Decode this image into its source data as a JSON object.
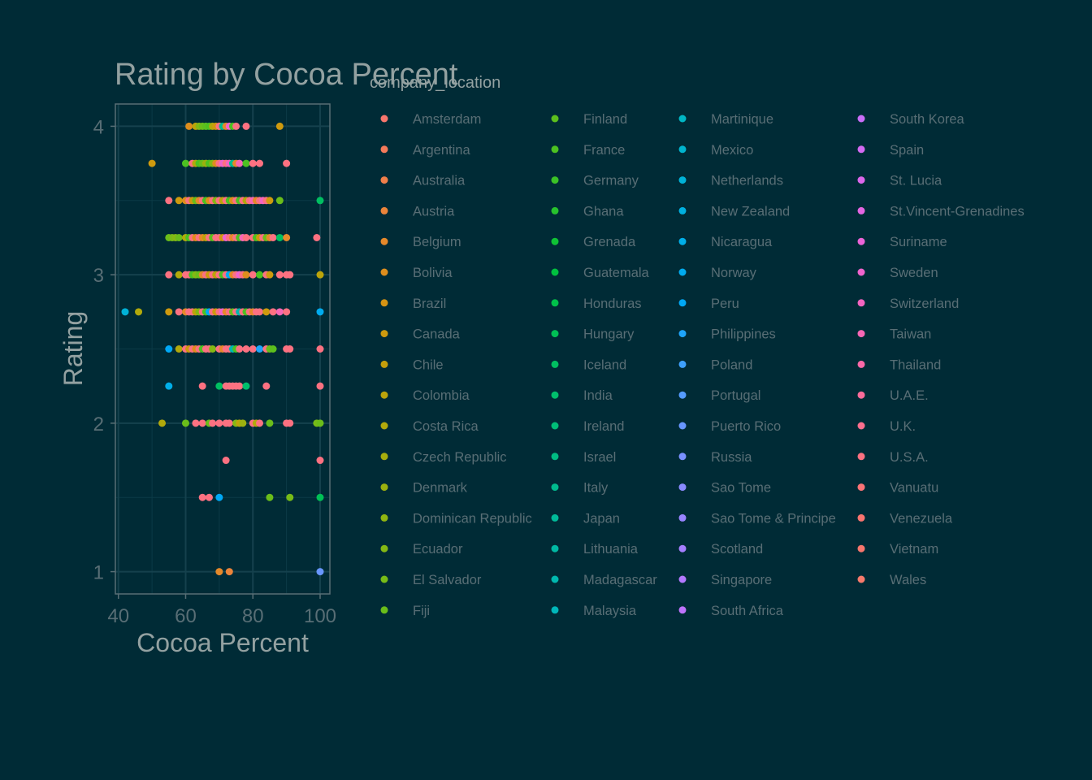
{
  "chart_data": {
    "type": "scatter",
    "title": "Rating by Cocoa Percent",
    "xlabel": "Cocoa Percent",
    "ylabel": "Rating",
    "xlim": [
      39.1,
      102.9
    ],
    "ylim": [
      0.85,
      4.15
    ],
    "xticks": [
      40,
      60,
      80,
      100
    ],
    "yticks": [
      1,
      2,
      3,
      4
    ],
    "grid": true,
    "legend": {
      "title": "company_location",
      "placement": "right",
      "entries": [
        {
          "name": "Amsterdam",
          "color": "#F8766D"
        },
        {
          "name": "Argentina",
          "color": "#F47A5A"
        },
        {
          "name": "Australia",
          "color": "#F07F4A"
        },
        {
          "name": "Austria",
          "color": "#EB843A"
        },
        {
          "name": "Belgium",
          "color": "#E5892A"
        },
        {
          "name": "Bolivia",
          "color": "#DE8E1D"
        },
        {
          "name": "Brazil",
          "color": "#D69413"
        },
        {
          "name": "Canada",
          "color": "#CE9A0E"
        },
        {
          "name": "Chile",
          "color": "#C59F0B"
        },
        {
          "name": "Colombia",
          "color": "#BCA40A"
        },
        {
          "name": "Costa Rica",
          "color": "#B2A90B"
        },
        {
          "name": "Czech Republic",
          "color": "#A7AD0D"
        },
        {
          "name": "Denmark",
          "color": "#9CB10F"
        },
        {
          "name": "Dominican Republic",
          "color": "#90B511"
        },
        {
          "name": "Ecuador",
          "color": "#84B814"
        },
        {
          "name": "El Salvador",
          "color": "#77BB17"
        },
        {
          "name": "Fiji",
          "color": "#6ABD1A"
        },
        {
          "name": "Finland",
          "color": "#5CBF1D"
        },
        {
          "name": "France",
          "color": "#4CC121"
        },
        {
          "name": "Germany",
          "color": "#3BC226"
        },
        {
          "name": "Ghana",
          "color": "#27C22D"
        },
        {
          "name": "Grenada",
          "color": "#0FC235"
        },
        {
          "name": "Guatemala",
          "color": "#00C13F"
        },
        {
          "name": "Honduras",
          "color": "#00C14A"
        },
        {
          "name": "Hungary",
          "color": "#00C055"
        },
        {
          "name": "Iceland",
          "color": "#00BF61"
        },
        {
          "name": "India",
          "color": "#00BE6C"
        },
        {
          "name": "Ireland",
          "color": "#00BD78"
        },
        {
          "name": "Israel",
          "color": "#00BC83"
        },
        {
          "name": "Italy",
          "color": "#00BB8E"
        },
        {
          "name": "Japan",
          "color": "#00BA99"
        },
        {
          "name": "Lithuania",
          "color": "#00B9A4"
        },
        {
          "name": "Madagascar",
          "color": "#00B8AF"
        },
        {
          "name": "Malaysia",
          "color": "#00B7BA"
        },
        {
          "name": "Martinique",
          "color": "#00B6C4"
        },
        {
          "name": "Mexico",
          "color": "#00B4CE"
        },
        {
          "name": "Netherlands",
          "color": "#00B2D7"
        },
        {
          "name": "New Zealand",
          "color": "#00B0E0"
        },
        {
          "name": "Nicaragua",
          "color": "#00AEE8"
        },
        {
          "name": "Norway",
          "color": "#00ABEF"
        },
        {
          "name": "Peru",
          "color": "#00A8F5"
        },
        {
          "name": "Philippines",
          "color": "#1EA4F9"
        },
        {
          "name": "Poland",
          "color": "#3EA0FC"
        },
        {
          "name": "Portugal",
          "color": "#559BFE"
        },
        {
          "name": "Puerto Rico",
          "color": "#6896FF"
        },
        {
          "name": "Russia",
          "color": "#7990FF"
        },
        {
          "name": "Sao Tome",
          "color": "#898AFF"
        },
        {
          "name": "Sao Tome & Principe",
          "color": "#9884FF"
        },
        {
          "name": "Scotland",
          "color": "#A57EFF"
        },
        {
          "name": "Singapore",
          "color": "#B278FF"
        },
        {
          "name": "South Africa",
          "color": "#BE73FC"
        },
        {
          "name": "South Korea",
          "color": "#C96EF8"
        },
        {
          "name": "Spain",
          "color": "#D36AF2"
        },
        {
          "name": "St. Lucia",
          "color": "#DC67EB"
        },
        {
          "name": "St.Vincent-Grenadines",
          "color": "#E465E2"
        },
        {
          "name": "Suriname",
          "color": "#EB64D8"
        },
        {
          "name": "Sweden",
          "color": "#F064CD"
        },
        {
          "name": "Switzerland",
          "color": "#F465C1"
        },
        {
          "name": "Taiwan",
          "color": "#F767B5"
        },
        {
          "name": "Thailand",
          "color": "#FA69A8"
        },
        {
          "name": "U.A.E.",
          "color": "#FB6C9B"
        },
        {
          "name": "U.K.",
          "color": "#FC6F8E"
        },
        {
          "name": "U.S.A.",
          "color": "#FC7181"
        },
        {
          "name": "Vanuatu",
          "color": "#FB7376"
        },
        {
          "name": "Venezuela",
          "color": "#FA746F"
        },
        {
          "name": "Vietnam",
          "color": "#F8766D"
        },
        {
          "name": "Wales",
          "color": "#F77A6C"
        }
      ]
    },
    "points": [
      [
        70,
        4,
        "Bolivia"
      ],
      [
        61,
        4,
        "Bolivia"
      ],
      [
        63,
        4,
        "Colombia"
      ],
      [
        64,
        4,
        "Ecuador"
      ],
      [
        65,
        4,
        "Fiji"
      ],
      [
        66,
        4,
        "Finland"
      ],
      [
        67,
        4,
        "France"
      ],
      [
        68,
        4,
        "Costa Rica"
      ],
      [
        69,
        4,
        "Canada"
      ],
      [
        70,
        4,
        "U.S.A."
      ],
      [
        71,
        4,
        "Italy"
      ],
      [
        72,
        4,
        "Belgium"
      ],
      [
        73,
        4,
        "Sweden"
      ],
      [
        74,
        4,
        "France"
      ],
      [
        75,
        4,
        "U.S.A."
      ],
      [
        78,
        4,
        "U.S.A."
      ],
      [
        88,
        4,
        "Canada"
      ],
      [
        50,
        3.75,
        "Canada"
      ],
      [
        60,
        3.75,
        "France"
      ],
      [
        62,
        3.75,
        "U.S.A."
      ],
      [
        63,
        3.75,
        "Costa Rica"
      ],
      [
        64,
        3.75,
        "France"
      ],
      [
        65,
        3.75,
        "Fiji"
      ],
      [
        66,
        3.75,
        "Denmark"
      ],
      [
        67,
        3.75,
        "France"
      ],
      [
        68,
        3.75,
        "Ecuador"
      ],
      [
        69,
        3.75,
        "Bolivia"
      ],
      [
        70,
        3.75,
        "U.S.A."
      ],
      [
        71,
        3.75,
        "Sweden"
      ],
      [
        72,
        3.75,
        "U.S.A."
      ],
      [
        73,
        3.75,
        "Switzerland"
      ],
      [
        74,
        3.75,
        "Italy"
      ],
      [
        75,
        3.75,
        "Belgium"
      ],
      [
        76,
        3.75,
        "Taiwan"
      ],
      [
        78,
        3.75,
        "France"
      ],
      [
        80,
        3.75,
        "U.S.A."
      ],
      [
        82,
        3.75,
        "U.S.A."
      ],
      [
        90,
        3.75,
        "U.S.A."
      ],
      [
        55,
        3.5,
        "U.S.A."
      ],
      [
        58,
        3.5,
        "Canada"
      ],
      [
        60,
        3.5,
        "Bolivia"
      ],
      [
        61,
        3.5,
        "U.S.A."
      ],
      [
        62,
        3.5,
        "Canada"
      ],
      [
        63,
        3.5,
        "Fiji"
      ],
      [
        64,
        3.5,
        "Belgium"
      ],
      [
        65,
        3.5,
        "U.S.A."
      ],
      [
        66,
        3.5,
        "France"
      ],
      [
        67,
        3.5,
        "Bolivia"
      ],
      [
        68,
        3.5,
        "U.S.A."
      ],
      [
        69,
        3.5,
        "Ecuador"
      ],
      [
        70,
        3.5,
        "U.S.A."
      ],
      [
        71,
        3.5,
        "Colombia"
      ],
      [
        72,
        3.5,
        "U.S.A."
      ],
      [
        73,
        3.5,
        "France"
      ],
      [
        74,
        3.5,
        "Bolivia"
      ],
      [
        75,
        3.5,
        "U.S.A."
      ],
      [
        76,
        3.5,
        "France"
      ],
      [
        77,
        3.5,
        "U.S.A."
      ],
      [
        78,
        3.5,
        "Costa Rica"
      ],
      [
        79,
        3.5,
        "U.S.A."
      ],
      [
        80,
        3.5,
        "Taiwan"
      ],
      [
        81,
        3.5,
        "Belgium"
      ],
      [
        82,
        3.5,
        "U.S.A."
      ],
      [
        83,
        3.5,
        "Switzerland"
      ],
      [
        84,
        3.5,
        "U.S.A."
      ],
      [
        85,
        3.5,
        "Canada"
      ],
      [
        88,
        3.5,
        "Fiji"
      ],
      [
        100,
        3.5,
        "Iceland"
      ],
      [
        55,
        3.25,
        "Fiji"
      ],
      [
        56,
        3.25,
        "El Salvador"
      ],
      [
        57,
        3.25,
        "Ecuador"
      ],
      [
        58,
        3.25,
        "Fiji"
      ],
      [
        60,
        3.25,
        "Costa Rica"
      ],
      [
        61,
        3.25,
        "France"
      ],
      [
        62,
        3.25,
        "U.S.A."
      ],
      [
        63,
        3.25,
        "Bolivia"
      ],
      [
        64,
        3.25,
        "U.S.A."
      ],
      [
        65,
        3.25,
        "Belgium"
      ],
      [
        66,
        3.25,
        "Colombia"
      ],
      [
        67,
        3.25,
        "U.S.A."
      ],
      [
        68,
        3.25,
        "Finland"
      ],
      [
        69,
        3.25,
        "U.S.A."
      ],
      [
        70,
        3.25,
        "U.S.A."
      ],
      [
        71,
        3.25,
        "Canada"
      ],
      [
        72,
        3.25,
        "Sweden"
      ],
      [
        73,
        3.25,
        "U.S.A."
      ],
      [
        74,
        3.25,
        "Belgium"
      ],
      [
        75,
        3.25,
        "U.S.A."
      ],
      [
        76,
        3.25,
        "France"
      ],
      [
        77,
        3.25,
        "Taiwan"
      ],
      [
        78,
        3.25,
        "U.S.A."
      ],
      [
        80,
        3.25,
        "U.S.A."
      ],
      [
        81,
        3.25,
        "France"
      ],
      [
        82,
        3.25,
        "Canada"
      ],
      [
        83,
        3.25,
        "U.S.A."
      ],
      [
        84,
        3.25,
        "Fiji"
      ],
      [
        85,
        3.25,
        "Belgium"
      ],
      [
        86,
        3.25,
        "U.S.A."
      ],
      [
        88,
        3.25,
        "Iceland"
      ],
      [
        90,
        3.25,
        "Belgium"
      ],
      [
        99,
        3.25,
        "U.S.A."
      ],
      [
        55,
        3,
        "U.S.A."
      ],
      [
        58,
        3,
        "Costa Rica"
      ],
      [
        60,
        3,
        "U.S.A."
      ],
      [
        61,
        3,
        "U.S.A."
      ],
      [
        62,
        3,
        "France"
      ],
      [
        63,
        3,
        "Ecuador"
      ],
      [
        64,
        3,
        "Fiji"
      ],
      [
        65,
        3,
        "Belgium"
      ],
      [
        66,
        3,
        "U.S.A."
      ],
      [
        67,
        3,
        "Canada"
      ],
      [
        68,
        3,
        "U.S.A."
      ],
      [
        69,
        3,
        "Colombia"
      ],
      [
        70,
        3,
        "U.S.A."
      ],
      [
        71,
        3,
        "France"
      ],
      [
        72,
        3,
        "U.S.A."
      ],
      [
        73,
        3,
        "Norway"
      ],
      [
        74,
        3,
        "Belgium"
      ],
      [
        75,
        3,
        "U.S.A."
      ],
      [
        76,
        3,
        "Sweden"
      ],
      [
        77,
        3,
        "U.S.A."
      ],
      [
        78,
        3,
        "Bolivia"
      ],
      [
        80,
        3,
        "U.S.A."
      ],
      [
        82,
        3,
        "France"
      ],
      [
        84,
        3,
        "U.S.A."
      ],
      [
        85,
        3,
        "Canada"
      ],
      [
        88,
        3,
        "U.S.A."
      ],
      [
        90,
        3,
        "U.S.A."
      ],
      [
        91,
        3,
        "U.S.A."
      ],
      [
        100,
        3,
        "Colombia"
      ],
      [
        42,
        2.75,
        "Netherlands"
      ],
      [
        46,
        2.75,
        "Costa Rica"
      ],
      [
        55,
        2.75,
        "Canada"
      ],
      [
        58,
        2.75,
        "U.S.A."
      ],
      [
        60,
        2.75,
        "Belgium"
      ],
      [
        61,
        2.75,
        "U.S.A."
      ],
      [
        62,
        2.75,
        "U.S.A."
      ],
      [
        63,
        2.75,
        "Colombia"
      ],
      [
        64,
        2.75,
        "Ecuador"
      ],
      [
        65,
        2.75,
        "U.S.A."
      ],
      [
        66,
        2.75,
        "France"
      ],
      [
        67,
        2.75,
        "Peru"
      ],
      [
        68,
        2.75,
        "U.S.A."
      ],
      [
        69,
        2.75,
        "Canada"
      ],
      [
        70,
        2.75,
        "U.S.A."
      ],
      [
        71,
        2.75,
        "Sweden"
      ],
      [
        72,
        2.75,
        "Belgium"
      ],
      [
        73,
        2.75,
        "U.S.A."
      ],
      [
        74,
        2.75,
        "Fiji"
      ],
      [
        75,
        2.75,
        "U.S.A."
      ],
      [
        76,
        2.75,
        "Madagascar"
      ],
      [
        77,
        2.75,
        "U.S.A."
      ],
      [
        78,
        2.75,
        "France"
      ],
      [
        79,
        2.75,
        "U.S.A."
      ],
      [
        80,
        2.75,
        "Belgium"
      ],
      [
        81,
        2.75,
        "U.S.A."
      ],
      [
        82,
        2.75,
        "U.S.A."
      ],
      [
        84,
        2.75,
        "Canada"
      ],
      [
        86,
        2.75,
        "U.S.A."
      ],
      [
        88,
        2.75,
        "Taiwan"
      ],
      [
        90,
        2.75,
        "U.S.A."
      ],
      [
        100,
        2.75,
        "Norway"
      ],
      [
        55,
        2.5,
        "Peru"
      ],
      [
        58,
        2.5,
        "Costa Rica"
      ],
      [
        60,
        2.5,
        "U.S.A."
      ],
      [
        61,
        2.5,
        "Canada"
      ],
      [
        62,
        2.5,
        "U.S.A."
      ],
      [
        63,
        2.5,
        "Bolivia"
      ],
      [
        64,
        2.5,
        "U.S.A."
      ],
      [
        65,
        2.5,
        "France"
      ],
      [
        66,
        2.5,
        "U.S.A."
      ],
      [
        67,
        2.5,
        "U.S.A."
      ],
      [
        68,
        2.5,
        "Ecuador"
      ],
      [
        70,
        2.5,
        "U.S.A."
      ],
      [
        71,
        2.5,
        "Belgium"
      ],
      [
        72,
        2.5,
        "U.S.A."
      ],
      [
        73,
        2.5,
        "U.S.A."
      ],
      [
        74,
        2.5,
        "Madagascar"
      ],
      [
        75,
        2.5,
        "France"
      ],
      [
        76,
        2.5,
        "U.S.A."
      ],
      [
        78,
        2.5,
        "U.S.A."
      ],
      [
        80,
        2.5,
        "U.S.A."
      ],
      [
        82,
        2.5,
        "Philippines"
      ],
      [
        84,
        2.5,
        "U.S.A."
      ],
      [
        85,
        2.5,
        "Fiji"
      ],
      [
        86,
        2.5,
        "Finland"
      ],
      [
        90,
        2.5,
        "U.S.A."
      ],
      [
        91,
        2.5,
        "U.S.A."
      ],
      [
        100,
        2.5,
        "U.S.A."
      ],
      [
        55,
        2.25,
        "Nicaragua"
      ],
      [
        65,
        2.25,
        "U.S.A."
      ],
      [
        70,
        2.25,
        "Iceland"
      ],
      [
        72,
        2.25,
        "U.S.A."
      ],
      [
        73,
        2.25,
        "U.S.A."
      ],
      [
        74,
        2.25,
        "U.S.A."
      ],
      [
        75,
        2.25,
        "U.S.A."
      ],
      [
        76,
        2.25,
        "U.S.A."
      ],
      [
        78,
        2.25,
        "India"
      ],
      [
        84,
        2.25,
        "U.S.A."
      ],
      [
        100,
        2.25,
        "U.S.A."
      ],
      [
        53,
        2,
        "Costa Rica"
      ],
      [
        60,
        2,
        "Fiji"
      ],
      [
        63,
        2,
        "U.S.A."
      ],
      [
        65,
        2,
        "U.S.A."
      ],
      [
        67,
        2,
        "Fiji"
      ],
      [
        68,
        2,
        "U.S.A."
      ],
      [
        70,
        2,
        "U.S.A."
      ],
      [
        72,
        2,
        "U.S.A."
      ],
      [
        73,
        2,
        "U.S.A."
      ],
      [
        75,
        2,
        "Ecuador"
      ],
      [
        76,
        2,
        "Colombia"
      ],
      [
        77,
        2,
        "Denmark"
      ],
      [
        80,
        2,
        "U.S.A."
      ],
      [
        81,
        2,
        "Costa Rica"
      ],
      [
        82,
        2,
        "U.S.A."
      ],
      [
        85,
        2,
        "Fiji"
      ],
      [
        90,
        2,
        "U.S.A."
      ],
      [
        91,
        2,
        "U.S.A."
      ],
      [
        99,
        2,
        "El Salvador"
      ],
      [
        100,
        2,
        "Fiji"
      ],
      [
        72,
        1.75,
        "U.S.A."
      ],
      [
        100,
        1.75,
        "U.S.A."
      ],
      [
        65,
        1.5,
        "U.S.A."
      ],
      [
        67,
        1.5,
        "U.S.A."
      ],
      [
        70,
        1.5,
        "Peru"
      ],
      [
        85,
        1.5,
        "Fiji"
      ],
      [
        91,
        1.5,
        "El Salvador"
      ],
      [
        100,
        1.5,
        "Hungary"
      ],
      [
        70,
        1,
        "Belgium"
      ],
      [
        73,
        1,
        "Austria"
      ],
      [
        100,
        1,
        "Puerto Rico"
      ]
    ]
  }
}
